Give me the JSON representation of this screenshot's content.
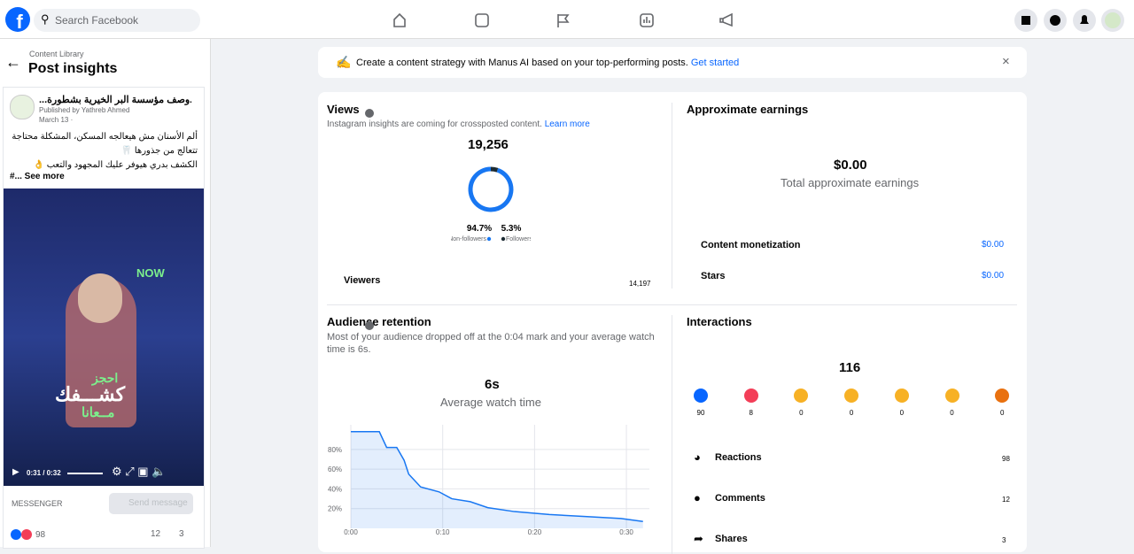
{
  "topbar": {
    "search_placeholder": "Search Facebook"
  },
  "sidebar": {
    "breadcrumb": "Content Library",
    "title": "Post insights",
    "post": {
      "page_name": "وصف مؤسسة البر الخيرية بشطورة...",
      "published_by": "Published by Yathreb Ahmed",
      "date": "March 13 ·",
      "lines": [
        "ألم الأسنان مش هيعالجه المسكن، المشكلة محتاجة",
        "تتعالج من جذورها 🦷",
        "الكشف بدري هيوفر عليك المجهود والتعب 👌"
      ],
      "see_more": "#... See more",
      "video_overlay": [
        "احجز",
        "كشـــفك",
        "مــعانا"
      ],
      "video_badge": "NOW",
      "video_time": "0:31 / 0:32",
      "messenger": "MESSENGER",
      "send_message": "Send message",
      "reactions": "98",
      "comments": "12",
      "shares": "3"
    }
  },
  "banner": {
    "text": "Create a content strategy with Manus AI based on your top-performing posts.",
    "link": "Get started"
  },
  "views": {
    "title": "Views",
    "note": "Instagram insights are coming for crossposted content.",
    "link": "Learn more",
    "total": "19,256",
    "donut": {
      "type": "pie",
      "labels": [
        "Non-followers",
        "Followers"
      ],
      "values": [
        94.7,
        5.3
      ],
      "value_labels": [
        "94.7%",
        "5.3%"
      ],
      "colors": [
        "#1877f2",
        "#1c2b33"
      ]
    },
    "viewers_label": "Viewers",
    "viewers": "14,197"
  },
  "earnings": {
    "title": "Approximate earnings",
    "total": "$0.00",
    "caption": "Total approximate earnings",
    "rows": [
      {
        "label": "Content monetization",
        "value": "$0.00"
      },
      {
        "label": "Stars",
        "value": "$0.00"
      }
    ]
  },
  "retention": {
    "title": "Audience retention",
    "description": "Most of your audience dropped off at the 0:04 mark and your average watch time is 6s.",
    "average": "6s",
    "caption": "Average watch time",
    "chart": {
      "type": "area",
      "x": [
        0,
        3.1,
        3.9,
        5.0,
        5.8,
        6.3,
        7.6,
        9.6,
        11,
        13,
        14.9,
        17.8,
        21.6,
        25.5,
        29.4,
        31.8
      ],
      "values": [
        98,
        98,
        82,
        82,
        69,
        55,
        42,
        37,
        30,
        27,
        21,
        17,
        14,
        12,
        10,
        7
      ],
      "color": "#1877f2",
      "xlim": [
        0,
        32.5
      ],
      "ylim": [
        0,
        105
      ],
      "xticks": [
        {
          "value": 0,
          "label": "0:00"
        },
        {
          "value": 10,
          "label": "0:10"
        },
        {
          "value": 20,
          "label": "0:20"
        },
        {
          "value": 30,
          "label": "0:30"
        }
      ],
      "yticks": [
        {
          "value": 20,
          "label": "20%"
        },
        {
          "value": 40,
          "label": "40%"
        },
        {
          "value": 60,
          "label": "60%"
        },
        {
          "value": 80,
          "label": "80%"
        }
      ],
      "grid": true
    }
  },
  "interactions": {
    "title": "Interactions",
    "total": "116",
    "reactions": [
      "90",
      "8",
      "0",
      "0",
      "0",
      "0",
      "0"
    ],
    "rows": [
      {
        "label": "Reactions",
        "value": "98"
      },
      {
        "label": "Comments",
        "value": "12"
      },
      {
        "label": "Shares",
        "value": "3"
      }
    ]
  }
}
